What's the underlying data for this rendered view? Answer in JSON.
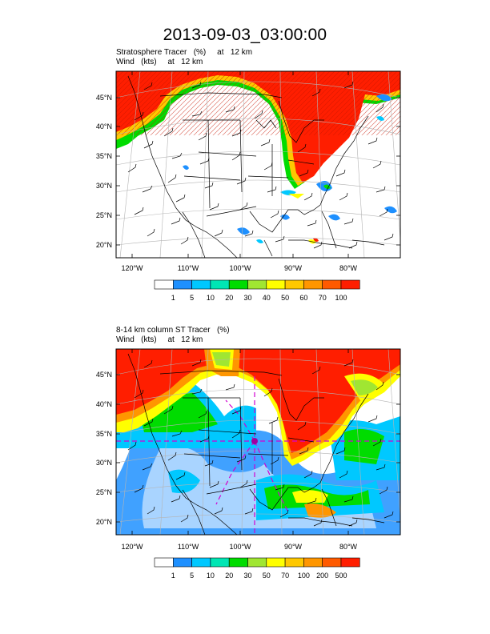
{
  "title": "2013-09-03_03:00:00",
  "panels": [
    {
      "subtitle_line1": "Stratosphere Tracer   (%)     at   12 km",
      "subtitle_line2": "Wind   (kts)     at   12 km",
      "colorbar_labels": [
        "1",
        "5",
        "10",
        "20",
        "30",
        "40",
        "50",
        "60",
        "70",
        "100"
      ],
      "colorbar_colors": [
        "#ffffff",
        "#1e90ff",
        "#00c8ff",
        "#00e6b4",
        "#00dc00",
        "#a0e632",
        "#ffff00",
        "#ffc800",
        "#ff9600",
        "#ff5a00",
        "#ff1e00"
      ]
    },
    {
      "subtitle_line1": "8-14 km column ST Tracer   (%)",
      "subtitle_line2": "Wind   (kts)     at   12 km",
      "colorbar_labels": [
        "1",
        "5",
        "10",
        "20",
        "30",
        "50",
        "70",
        "100",
        "200",
        "500"
      ],
      "colorbar_colors": [
        "#ffffff",
        "#1e90ff",
        "#00c8ff",
        "#00e6b4",
        "#00dc00",
        "#a0e632",
        "#ffff00",
        "#ffc800",
        "#ff9600",
        "#ff5a00",
        "#ff1e00"
      ]
    }
  ],
  "lat_labels": [
    "45°N",
    "40°N",
    "35°N",
    "30°N",
    "25°N",
    "20°N"
  ],
  "lon_labels": [
    "120°W",
    "110°W",
    "100°W",
    "90°W",
    "80°W"
  ]
}
